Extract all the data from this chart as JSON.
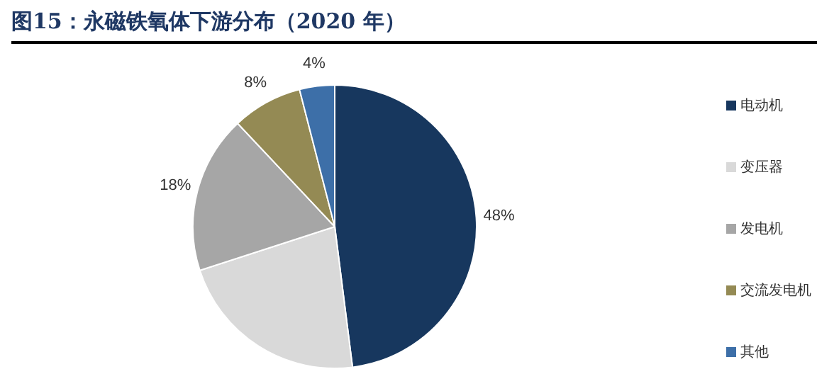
{
  "chart_data": {
    "type": "pie",
    "title": "图15：永磁铁氧体下游分布（2020 年）",
    "categories": [
      "电动机",
      "变压器",
      "发电机",
      "交流发电机",
      "其他"
    ],
    "values": [
      48,
      22,
      18,
      8,
      4
    ],
    "colors": [
      "#17375e",
      "#d9d9d9",
      "#a6a6a6",
      "#948a54",
      "#3d6fa8"
    ],
    "value_labels": [
      "48%",
      null,
      "18%",
      "8%",
      "4%"
    ],
    "legend": "right"
  }
}
